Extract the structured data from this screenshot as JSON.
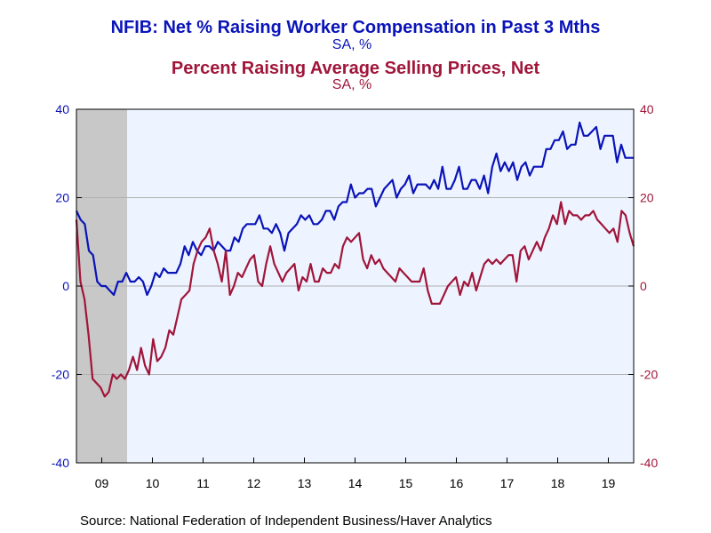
{
  "chart_data": {
    "type": "line",
    "titles": [
      {
        "text": "NFIB: Net % Raising Worker Compensation in Past 3 Mths",
        "subtitle": "SA, %",
        "color": "#0a14b8"
      },
      {
        "text": "Percent Raising Average Selling Prices, Net",
        "subtitle": "SA, %",
        "color": "#a0163a"
      }
    ],
    "x_labels": [
      "09",
      "10",
      "11",
      "12",
      "13",
      "14",
      "15",
      "16",
      "17",
      "18",
      "19"
    ],
    "x_range": [
      2008.5,
      2019.5
    ],
    "recession_shading": [
      2008.5,
      2009.5
    ],
    "left_axis": {
      "min": -40,
      "max": 40,
      "ticks": [
        -40,
        -20,
        0,
        20,
        40
      ],
      "color": "#0a14b8"
    },
    "right_axis": {
      "min": -40,
      "max": 40,
      "ticks": [
        -40,
        -20,
        0,
        20,
        40
      ],
      "color": "#a0163a"
    },
    "start": 2008.5,
    "series": [
      {
        "name": "Net % Raising Worker Compensation",
        "color": "#0a14b8",
        "values": [
          17,
          15,
          14,
          8,
          7,
          1,
          0,
          0,
          -1,
          -2,
          1,
          1,
          3,
          1,
          1,
          2,
          1,
          -2,
          0,
          3,
          2,
          4,
          3,
          3,
          3,
          5,
          9,
          7,
          10,
          8,
          7,
          9,
          9,
          8,
          10,
          9,
          8,
          8,
          11,
          10,
          13,
          14,
          14,
          14,
          16,
          13,
          13,
          12,
          14,
          12,
          8,
          12,
          13,
          14,
          16,
          15,
          16,
          14,
          14,
          15,
          17,
          17,
          15,
          18,
          19,
          19,
          23,
          20,
          21,
          21,
          22,
          22,
          18,
          20,
          22,
          23,
          24,
          20,
          22,
          23,
          25,
          21,
          23,
          23,
          23,
          22,
          24,
          22,
          27,
          22,
          22,
          24,
          27,
          22,
          22,
          24,
          24,
          22,
          25,
          21,
          27,
          30,
          26,
          28,
          26,
          28,
          24,
          27,
          28,
          25,
          27,
          27,
          27,
          31,
          31,
          33,
          33,
          35,
          31,
          32,
          32,
          37,
          34,
          34,
          35,
          36,
          31,
          34,
          34,
          34,
          28,
          32,
          29,
          29,
          29
        ]
      },
      {
        "name": "Percent Raising Average Selling Prices, Net",
        "color": "#a0163a",
        "values": [
          15,
          1,
          -3,
          -11,
          -21,
          -22,
          -23,
          -25,
          -24,
          -20,
          -21,
          -20,
          -21,
          -19,
          -16,
          -19,
          -14,
          -18,
          -20,
          -12,
          -17,
          -16,
          -14,
          -10,
          -11,
          -7,
          -3,
          -2,
          -1,
          5,
          8,
          10,
          11,
          13,
          8,
          5,
          1,
          8,
          -2,
          0,
          3,
          2,
          4,
          6,
          7,
          1,
          0,
          5,
          9,
          5,
          3,
          1,
          3,
          4,
          5,
          -1,
          2,
          1,
          5,
          1,
          1,
          4,
          3,
          3,
          5,
          4,
          9,
          11,
          10,
          11,
          12,
          6,
          4,
          7,
          5,
          6,
          4,
          3,
          2,
          1,
          4,
          3,
          2,
          1,
          1,
          1,
          4,
          -1,
          -4,
          -4,
          -4,
          -2,
          0,
          1,
          2,
          -2,
          1,
          0,
          3,
          -1,
          2,
          5,
          6,
          5,
          6,
          5,
          6,
          7,
          7,
          1,
          8,
          9,
          6,
          8,
          10,
          8,
          11,
          13,
          16,
          14,
          19,
          14,
          17,
          16,
          16,
          15,
          16,
          16,
          17,
          15,
          14,
          13,
          12,
          13,
          10,
          17,
          16,
          12,
          9
        ]
      }
    ]
  },
  "source": "Source:  National Federation of Independent Business/Haver Analytics"
}
